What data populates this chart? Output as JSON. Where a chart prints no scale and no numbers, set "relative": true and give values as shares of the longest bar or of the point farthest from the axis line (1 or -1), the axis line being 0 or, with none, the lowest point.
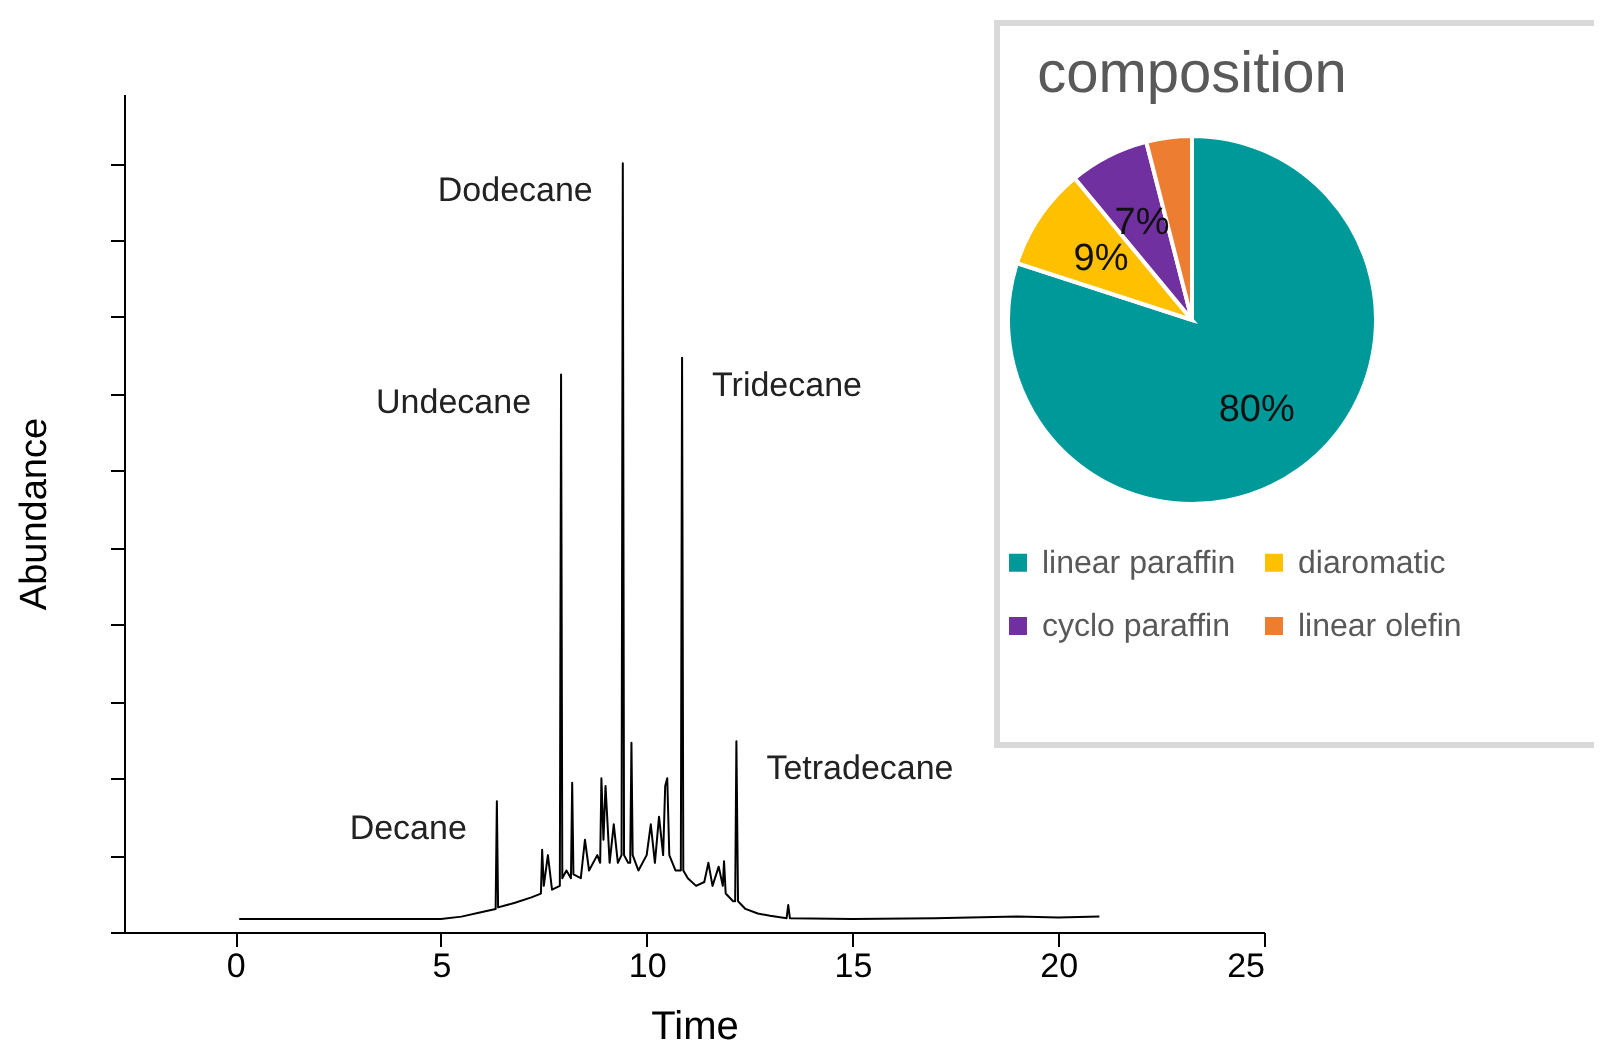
{
  "chart_data": [
    {
      "type": "line",
      "xlabel": "Time",
      "ylabel": "Abundance",
      "relative": true,
      "xlim": [
        -2.7,
        25
      ],
      "xticks": [
        0,
        5,
        10,
        15,
        20,
        25
      ],
      "grid": false,
      "tick_labels": "x",
      "marker": "none",
      "annotations": [
        {
          "text": "Decane",
          "x": 6.36,
          "y": 0.17
        },
        {
          "text": "Undecane",
          "x": 7.92,
          "y": 0.725
        },
        {
          "text": "Dodecane",
          "x": 9.42,
          "y": 1.0
        },
        {
          "text": "Tridecane",
          "x": 10.86,
          "y": 0.747
        },
        {
          "text": "Tetradecane",
          "x": 12.18,
          "y": 0.248
        }
      ],
      "series": [
        {
          "color": "#000000",
          "x": [
            0.1,
            5,
            5.5,
            6,
            6.33,
            6.36,
            6.39,
            6.8,
            7.2,
            7.43,
            7.46,
            7.5,
            7.6,
            7.7,
            7.89,
            7.92,
            7.95,
            8.05,
            8.16,
            8.19,
            8.22,
            8.4,
            8.5,
            8.6,
            8.8,
            8.87,
            8.9,
            8.95,
            9.0,
            9.1,
            9.2,
            9.3,
            9.39,
            9.42,
            9.45,
            9.55,
            9.6,
            9.63,
            9.66,
            9.8,
            10.0,
            10.1,
            10.2,
            10.3,
            10.4,
            10.45,
            10.5,
            10.55,
            10.7,
            10.83,
            10.86,
            10.89,
            11.0,
            11.2,
            11.4,
            11.5,
            11.6,
            11.75,
            11.85,
            11.88,
            11.92,
            12.1,
            12.15,
            12.18,
            12.22,
            12.4,
            12.7,
            13.0,
            13.4,
            13.44,
            13.48,
            15,
            17,
            19,
            20,
            21
          ],
          "values": [
            0.017,
            0.017,
            0.02,
            0.026,
            0.03,
            0.17,
            0.032,
            0.038,
            0.045,
            0.05,
            0.107,
            0.06,
            0.1,
            0.055,
            0.06,
            0.725,
            0.07,
            0.08,
            0.07,
            0.194,
            0.075,
            0.07,
            0.12,
            0.08,
            0.1,
            0.09,
            0.2,
            0.12,
            0.19,
            0.09,
            0.14,
            0.09,
            0.1,
            1.0,
            0.1,
            0.09,
            0.09,
            0.246,
            0.1,
            0.08,
            0.1,
            0.14,
            0.09,
            0.15,
            0.1,
            0.19,
            0.2,
            0.1,
            0.08,
            0.08,
            0.747,
            0.08,
            0.07,
            0.06,
            0.065,
            0.09,
            0.06,
            0.085,
            0.06,
            0.092,
            0.05,
            0.04,
            0.04,
            0.248,
            0.04,
            0.03,
            0.024,
            0.021,
            0.018,
            0.035,
            0.018,
            0.017,
            0.018,
            0.02,
            0.019,
            0.02
          ]
        }
      ]
    },
    {
      "type": "pie",
      "title": "composition",
      "legend": "bottom",
      "categories": [
        "linear paraffin",
        "diaromatic",
        "cyclo paraffin",
        "linear olefin"
      ],
      "values": [
        80,
        9,
        7,
        4
      ],
      "colors": [
        "#009999",
        "#ffc000",
        "#7030a0",
        "#ed7d31"
      ],
      "value_labels": [
        "80%",
        "9%",
        "7%",
        null
      ]
    }
  ]
}
